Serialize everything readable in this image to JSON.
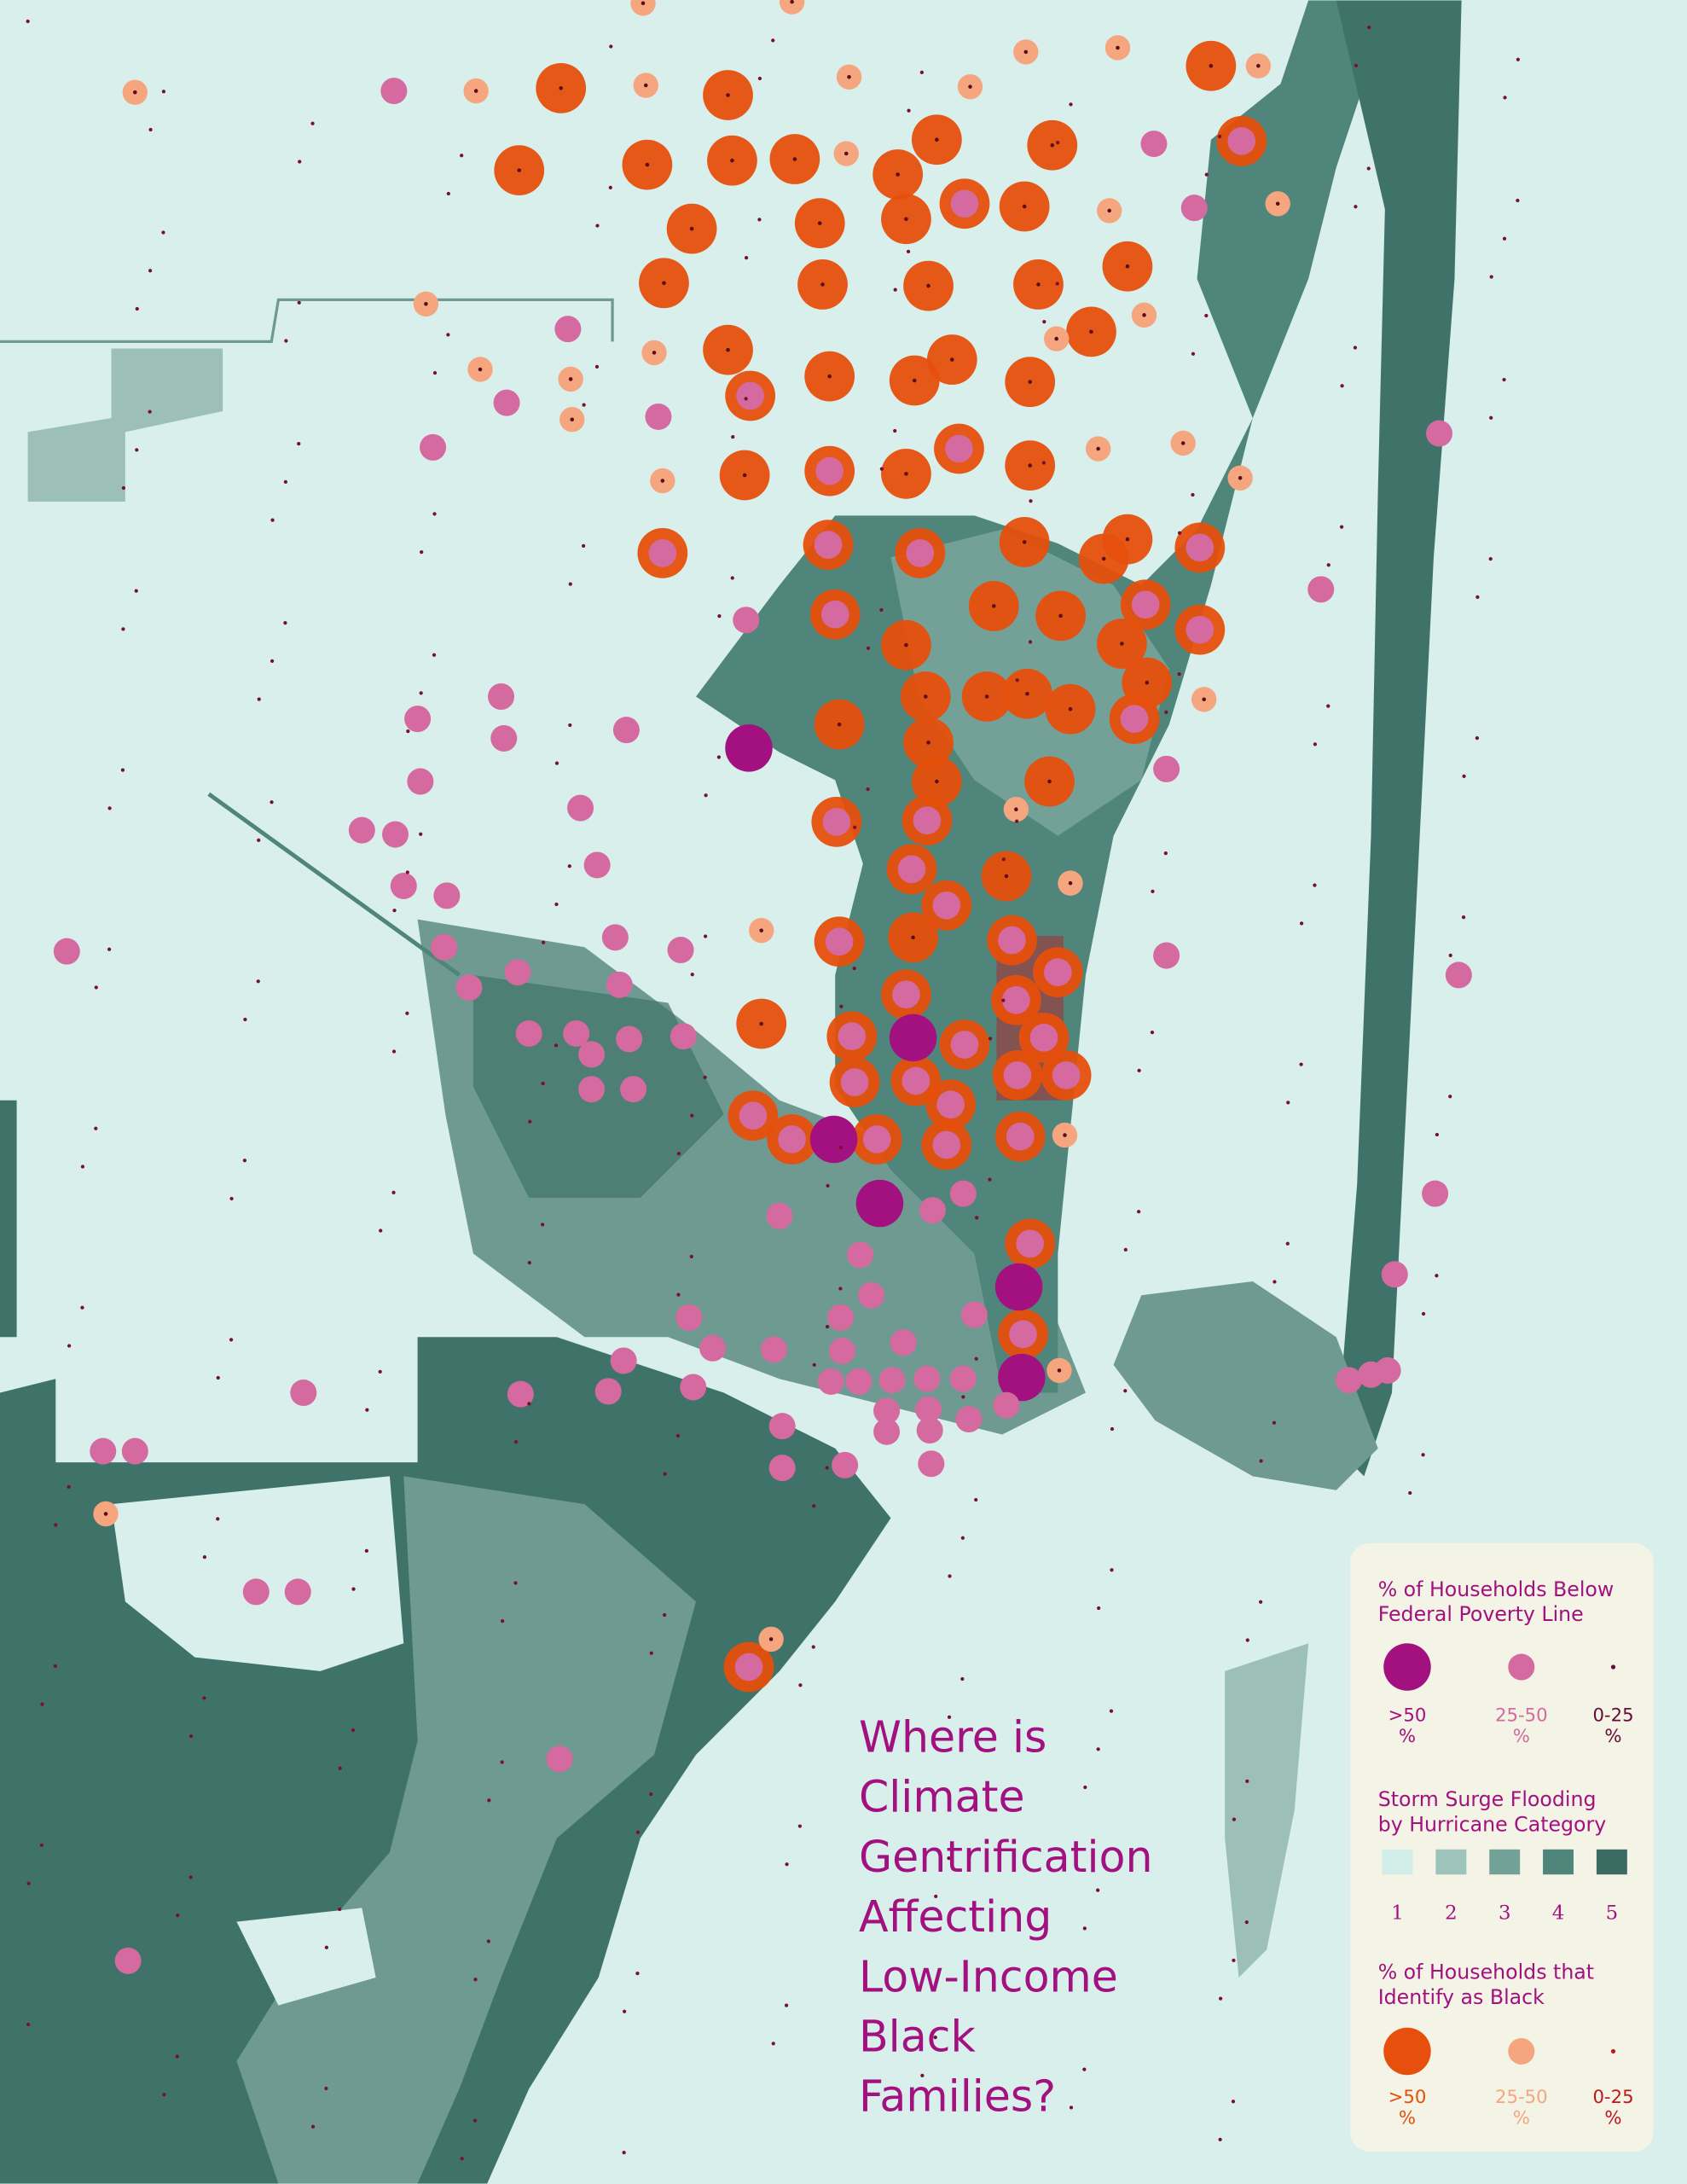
{
  "title": [
    "Where is",
    "Climate",
    "Gentrification",
    "Affecting",
    "Low-Income",
    "Black",
    "Families?"
  ],
  "legend": {
    "poverty": {
      "title": [
        "% of Households Below",
        "Federal Poverty Line"
      ],
      "items": [
        {
          "label": [
            ">50",
            "%"
          ],
          "color": "#a3107f"
        },
        {
          "label": [
            "25-50",
            "%"
          ],
          "color": "#d56aa0"
        },
        {
          "label": [
            "0-25",
            "%"
          ],
          "color": "#6b0a3a"
        }
      ]
    },
    "flooding": {
      "title": [
        "Storm Surge Flooding",
        "by Hurricane Category"
      ],
      "categories": [
        1,
        2,
        3,
        4,
        5
      ],
      "colors": [
        "#d2ece8",
        "#9ec3bb",
        "#73a197",
        "#4f857b",
        "#3b6c64"
      ]
    },
    "race": {
      "title": [
        "% of Households that",
        "Identify as Black"
      ],
      "items": [
        {
          "label": [
            ">50",
            "%"
          ],
          "color": "#e64f0c"
        },
        {
          "label": [
            "25-50",
            "%"
          ],
          "color": "#f6a67f"
        },
        {
          "label": [
            "0-25",
            "%"
          ],
          "color": "#c0171d"
        }
      ]
    }
  }
}
